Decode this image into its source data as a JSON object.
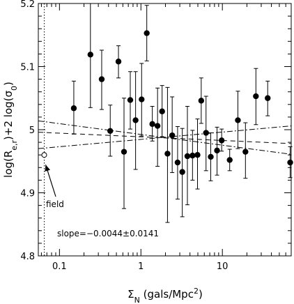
{
  "chart_data": {
    "type": "scatter",
    "xscale": "log",
    "yscale": "linear",
    "xlim": [
      0.055,
      70
    ],
    "ylim": [
      4.8,
      5.2
    ],
    "xlabel": {
      "base": "Σ",
      "sub": "N",
      "text": " (gals/Mpc",
      "sup": "2",
      "close": ")"
    },
    "ylabel": {
      "p1": "log(R",
      "sub1": "e,r",
      "p2": ")+2 log(σ",
      "sub2": "0",
      "p3": ")"
    },
    "xticks": [
      {
        "value": 0.1,
        "label": "0.1"
      },
      {
        "value": 1,
        "label": "1"
      },
      {
        "value": 10,
        "label": "10"
      }
    ],
    "yticks": [
      {
        "value": 4.8,
        "label": "4.8"
      },
      {
        "value": 4.9,
        "label": "4.9"
      },
      {
        "value": 5.0,
        "label": "5"
      },
      {
        "value": 5.1,
        "label": "5.1"
      },
      {
        "value": 5.2,
        "label": "5.2"
      }
    ],
    "points": [
      {
        "x": 0.15,
        "y": 5.034,
        "lo": 4.993,
        "hi": 5.077
      },
      {
        "x": 0.24,
        "y": 5.119,
        "lo": 5.035,
        "hi": 5.203
      },
      {
        "x": 0.33,
        "y": 5.08,
        "lo": 5.032,
        "hi": 5.126
      },
      {
        "x": 0.42,
        "y": 4.998,
        "lo": 4.958,
        "hi": 5.039
      },
      {
        "x": 0.53,
        "y": 5.108,
        "lo": 5.082,
        "hi": 5.133
      },
      {
        "x": 0.62,
        "y": 4.965,
        "lo": 4.875,
        "hi": 5.05
      },
      {
        "x": 0.74,
        "y": 5.047,
        "lo": 5.001,
        "hi": 5.092
      },
      {
        "x": 0.86,
        "y": 5.015,
        "lo": 4.937,
        "hi": 5.092
      },
      {
        "x": 1.02,
        "y": 5.048,
        "lo": 4.99,
        "hi": 5.105
      },
      {
        "x": 1.18,
        "y": 5.153,
        "lo": 5.109,
        "hi": 5.197
      },
      {
        "x": 1.38,
        "y": 5.009,
        "lo": 4.982,
        "hi": 5.037
      },
      {
        "x": 1.6,
        "y": 5.006,
        "lo": 4.942,
        "hi": 5.066
      },
      {
        "x": 1.82,
        "y": 5.029,
        "lo": 4.989,
        "hi": 5.07
      },
      {
        "x": 2.12,
        "y": 4.962,
        "lo": 4.853,
        "hi": 5.067
      },
      {
        "x": 2.42,
        "y": 4.991,
        "lo": 4.932,
        "hi": 5.052
      },
      {
        "x": 2.82,
        "y": 4.948,
        "lo": 4.89,
        "hi": 5.005
      },
      {
        "x": 3.22,
        "y": 4.933,
        "lo": 4.862,
        "hi": 5.002
      },
      {
        "x": 3.72,
        "y": 4.958,
        "lo": 4.881,
        "hi": 5.037
      },
      {
        "x": 4.3,
        "y": 4.959,
        "lo": 4.92,
        "hi": 4.999
      },
      {
        "x": 4.95,
        "y": 4.96,
        "lo": 4.906,
        "hi": 5.017
      },
      {
        "x": 5.5,
        "y": 5.046,
        "lo": 5.01,
        "hi": 5.082
      },
      {
        "x": 6.3,
        "y": 4.995,
        "lo": 4.935,
        "hi": 5.053
      },
      {
        "x": 7.2,
        "y": 4.957,
        "lo": 4.919,
        "hi": 4.995
      },
      {
        "x": 8.6,
        "y": 4.967,
        "lo": 4.928,
        "hi": 5.004
      },
      {
        "x": 9.8,
        "y": 4.983,
        "lo": 4.966,
        "hi": 5.001
      },
      {
        "x": 12.3,
        "y": 4.952,
        "lo": 4.935,
        "hi": 4.969
      },
      {
        "x": 15.5,
        "y": 5.015,
        "lo": 4.97,
        "hi": 5.061
      },
      {
        "x": 19.2,
        "y": 4.965,
        "lo": 4.923,
        "hi": 5.011
      },
      {
        "x": 25.8,
        "y": 5.053,
        "lo": 5.008,
        "hi": 5.097
      },
      {
        "x": 36.0,
        "y": 5.05,
        "lo": 5.022,
        "hi": 5.077
      },
      {
        "x": 68.0,
        "y": 4.948,
        "lo": 4.924,
        "hi": 4.973
      }
    ],
    "field_point": {
      "x": 0.065,
      "y": 4.96
    },
    "field_line_x": 0.065,
    "fit_lines": [
      {
        "style": "dashed",
        "x": [
          0.055,
          70
        ],
        "y": [
          4.996,
          4.978
        ]
      },
      {
        "style": "dashdot",
        "x": [
          0.055,
          70
        ],
        "y": [
          4.97,
          5.006
        ]
      },
      {
        "style": "dashdot",
        "x": [
          0.055,
          70
        ],
        "y": [
          5.014,
          4.961
        ]
      }
    ],
    "annotations": {
      "field_label": "field",
      "slope_text": "slope=−0.0044±0.0141"
    }
  }
}
